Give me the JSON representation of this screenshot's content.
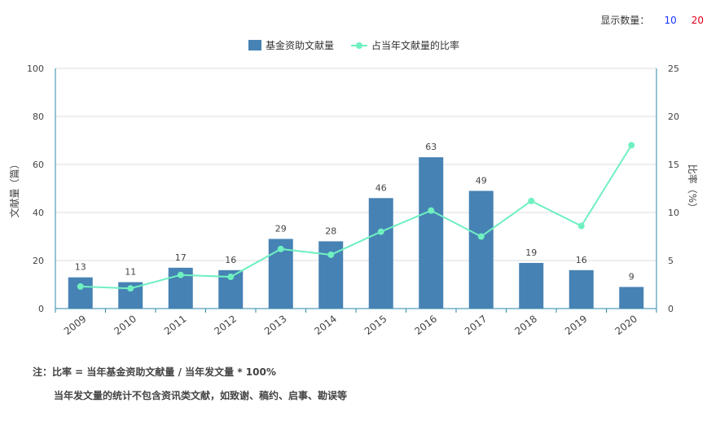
{
  "controls": {
    "display_count_label": "显示数量：",
    "options": [
      "10",
      "20"
    ]
  },
  "notes": {
    "line1": "注：比率 = 当年基金资助文献量 / 当年发文量 * 100%",
    "line2": "当年发文量的统计不包含资讯类文献，如致谢、稿约、启事、勘误等"
  },
  "chart_data": {
    "type": "bar",
    "categories": [
      "2009",
      "2010",
      "2011",
      "2012",
      "2013",
      "2014",
      "2015",
      "2016",
      "2017",
      "2018",
      "2019",
      "2020"
    ],
    "series": [
      {
        "name": "基金资助文献量",
        "type": "bar",
        "axis": "left",
        "color": "#4682b4",
        "values": [
          13,
          11,
          17,
          16,
          29,
          28,
          46,
          63,
          49,
          19,
          16,
          9
        ]
      },
      {
        "name": "占当年文献量的比率",
        "type": "line",
        "axis": "right",
        "color": "#6ff0c0",
        "values": [
          2.3,
          2.1,
          3.5,
          3.3,
          6.2,
          5.6,
          8.0,
          10.2,
          7.5,
          11.2,
          8.6,
          17.0
        ]
      }
    ],
    "ylabel": "文献量（篇）",
    "y2label": "比率（%）",
    "ylim": [
      0,
      100
    ],
    "y2lim": [
      0,
      25
    ],
    "yticks": [
      0,
      20,
      40,
      60,
      80,
      100
    ],
    "y2ticks": [
      0,
      5,
      10,
      15,
      20,
      25
    ],
    "grid": true,
    "legend": "top-center"
  }
}
